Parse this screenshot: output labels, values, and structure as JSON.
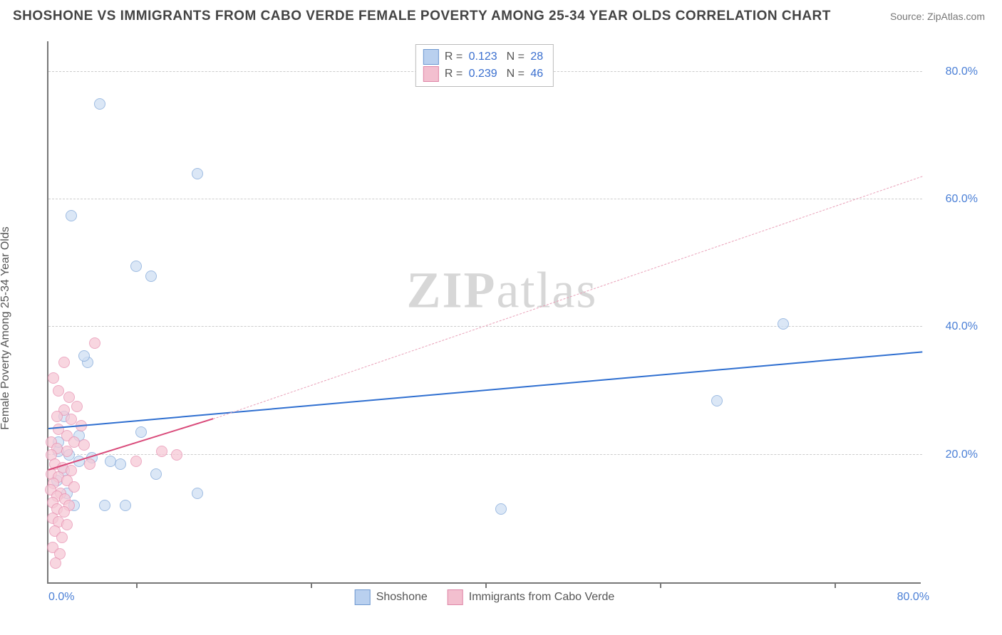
{
  "title": "SHOSHONE VS IMMIGRANTS FROM CABO VERDE FEMALE POVERTY AMONG 25-34 YEAR OLDS CORRELATION CHART",
  "source": "Source: ZipAtlas.com",
  "ylabel": "Female Poverty Among 25-34 Year Olds",
  "watermark_a": "ZIP",
  "watermark_b": "atlas",
  "chart": {
    "type": "scatter",
    "x_min": 0,
    "x_max": 85,
    "y_min": 0,
    "y_max": 85,
    "x_tick_labels": {
      "left": "0.0%",
      "right": "80.0%"
    },
    "y_ticks": [
      {
        "v": 20,
        "label": "20.0%"
      },
      {
        "v": 40,
        "label": "40.0%"
      },
      {
        "v": 60,
        "label": "60.0%"
      },
      {
        "v": 80,
        "label": "80.0%"
      }
    ],
    "x_minor_ticks": [
      8.5,
      25.5,
      42.5,
      59.5,
      76.5
    ],
    "grid_color": "#cccccc",
    "background_color": "#ffffff",
    "point_radius": 8,
    "point_border_width": 1.2,
    "series": [
      {
        "name": "Shoshone",
        "fill": "#cfe0f4",
        "stroke": "#7fa6d9",
        "fill_opacity": 0.75,
        "legend_swatch_fill": "#b9d0ef",
        "legend_swatch_stroke": "#6f98d0",
        "R": "0.123",
        "N": "28",
        "regression": {
          "x1": 0,
          "y1": 24.0,
          "x2": 85,
          "y2": 36.0,
          "stroke": "#2f6fd0",
          "width": 2.4,
          "dash": "none"
        },
        "points": [
          {
            "x": 5.0,
            "y": 75.0
          },
          {
            "x": 2.2,
            "y": 57.5
          },
          {
            "x": 14.5,
            "y": 64.0
          },
          {
            "x": 8.5,
            "y": 49.5
          },
          {
            "x": 10.0,
            "y": 48.0
          },
          {
            "x": 3.8,
            "y": 34.5
          },
          {
            "x": 3.5,
            "y": 35.5
          },
          {
            "x": 71.5,
            "y": 40.5
          },
          {
            "x": 65.0,
            "y": 28.5
          },
          {
            "x": 9.0,
            "y": 23.5
          },
          {
            "x": 1.0,
            "y": 20.5
          },
          {
            "x": 2.0,
            "y": 20.0
          },
          {
            "x": 4.2,
            "y": 19.5
          },
          {
            "x": 3.0,
            "y": 19.0
          },
          {
            "x": 3.0,
            "y": 23.0
          },
          {
            "x": 6.0,
            "y": 19.0
          },
          {
            "x": 7.0,
            "y": 18.5
          },
          {
            "x": 5.5,
            "y": 12.0
          },
          {
            "x": 7.5,
            "y": 12.0
          },
          {
            "x": 10.5,
            "y": 17.0
          },
          {
            "x": 14.5,
            "y": 14.0
          },
          {
            "x": 1.5,
            "y": 17.5
          },
          {
            "x": 0.8,
            "y": 16.0
          },
          {
            "x": 1.8,
            "y": 14.0
          },
          {
            "x": 2.5,
            "y": 12.0
          },
          {
            "x": 44.0,
            "y": 11.5
          },
          {
            "x": 1.5,
            "y": 26.0
          },
          {
            "x": 1.0,
            "y": 22.0
          }
        ]
      },
      {
        "name": "Immigrants from Cabo Verde",
        "fill": "#f6c9d6",
        "stroke": "#e78fb0",
        "fill_opacity": 0.75,
        "legend_swatch_fill": "#f3bfcf",
        "legend_swatch_stroke": "#df87a8",
        "R": "0.239",
        "N": "46",
        "regression_solid": {
          "x1": 0,
          "y1": 17.5,
          "x2": 16,
          "y2": 25.5,
          "stroke": "#d94a7a",
          "width": 2.4,
          "dash": "none"
        },
        "regression_dashed": {
          "x1": 16,
          "y1": 25.5,
          "x2": 85,
          "y2": 63.5,
          "stroke": "#e9a0b8",
          "width": 1.4,
          "dash": "6,5"
        },
        "points": [
          {
            "x": 4.5,
            "y": 37.5
          },
          {
            "x": 1.5,
            "y": 34.5
          },
          {
            "x": 0.5,
            "y": 32.0
          },
          {
            "x": 1.0,
            "y": 30.0
          },
          {
            "x": 2.0,
            "y": 29.0
          },
          {
            "x": 2.8,
            "y": 27.5
          },
          {
            "x": 1.5,
            "y": 27.0
          },
          {
            "x": 0.8,
            "y": 26.0
          },
          {
            "x": 2.2,
            "y": 25.5
          },
          {
            "x": 3.2,
            "y": 24.5
          },
          {
            "x": 1.0,
            "y": 24.0
          },
          {
            "x": 1.8,
            "y": 23.0
          },
          {
            "x": 0.3,
            "y": 22.0
          },
          {
            "x": 2.5,
            "y": 22.0
          },
          {
            "x": 3.5,
            "y": 21.5
          },
          {
            "x": 0.8,
            "y": 21.0
          },
          {
            "x": 1.8,
            "y": 20.5
          },
          {
            "x": 0.3,
            "y": 20.0
          },
          {
            "x": 11.0,
            "y": 20.5
          },
          {
            "x": 12.5,
            "y": 20.0
          },
          {
            "x": 8.5,
            "y": 19.0
          },
          {
            "x": 4.0,
            "y": 18.5
          },
          {
            "x": 0.6,
            "y": 18.5
          },
          {
            "x": 1.4,
            "y": 18.0
          },
          {
            "x": 2.2,
            "y": 17.5
          },
          {
            "x": 0.3,
            "y": 17.0
          },
          {
            "x": 1.0,
            "y": 16.5
          },
          {
            "x": 1.8,
            "y": 16.0
          },
          {
            "x": 0.5,
            "y": 15.5
          },
          {
            "x": 2.5,
            "y": 15.0
          },
          {
            "x": 0.2,
            "y": 14.5
          },
          {
            "x": 1.2,
            "y": 14.0
          },
          {
            "x": 0.8,
            "y": 13.5
          },
          {
            "x": 1.6,
            "y": 13.0
          },
          {
            "x": 0.4,
            "y": 12.5
          },
          {
            "x": 2.0,
            "y": 12.0
          },
          {
            "x": 0.8,
            "y": 11.5
          },
          {
            "x": 1.5,
            "y": 11.0
          },
          {
            "x": 0.4,
            "y": 10.0
          },
          {
            "x": 1.0,
            "y": 9.5
          },
          {
            "x": 1.8,
            "y": 9.0
          },
          {
            "x": 0.6,
            "y": 8.0
          },
          {
            "x": 1.3,
            "y": 7.0
          },
          {
            "x": 0.4,
            "y": 5.5
          },
          {
            "x": 1.1,
            "y": 4.5
          },
          {
            "x": 0.7,
            "y": 3.0
          }
        ]
      }
    ],
    "legend_bottom": [
      {
        "label": "Shoshone",
        "fill": "#b9d0ef",
        "stroke": "#6f98d0"
      },
      {
        "label": "Immigrants from Cabo Verde",
        "fill": "#f3bfcf",
        "stroke": "#df87a8"
      }
    ]
  }
}
